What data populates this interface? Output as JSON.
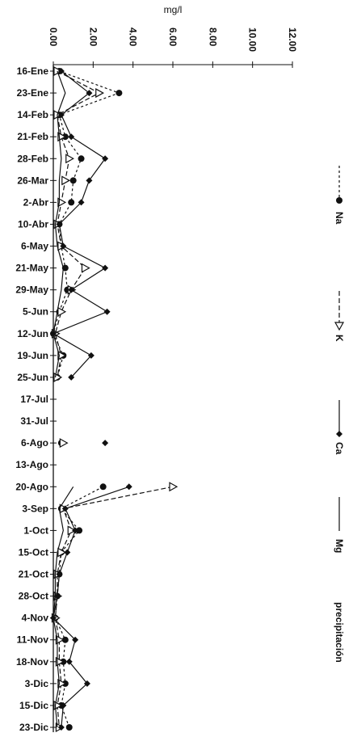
{
  "chart_data": {
    "type": "line",
    "orientation": "rotated-vertical",
    "xlabel": "mg/l",
    "xlim": [
      0,
      12
    ],
    "ticks": [
      "0.00",
      "2.00",
      "4.00",
      "6.00",
      "8.00",
      "10.00",
      "12.00"
    ],
    "categories": [
      "16-Ene",
      "23-Ene",
      "14-Feb",
      "21-Feb",
      "28-Feb",
      "26-Mar",
      "2-Abr",
      "10-Abr",
      "6-May",
      "21-May",
      "29-May",
      "5-Jun",
      "12-Jun",
      "19-Jun",
      "25-Jun",
      "17-Jul",
      "31-Jul",
      "6-Ago",
      "13-Ago",
      "20-Ago",
      "3-Sep",
      "1-Oct",
      "15-Oct",
      "21-Oct",
      "28-Oct",
      "4-Nov",
      "11-Nov",
      "18-Nov",
      "3-Dic",
      "15-Dic",
      "23-Dic"
    ],
    "series": [
      {
        "name": "Na",
        "color": "#111111",
        "marker": "circle",
        "dash": "3,3",
        "values": [
          0.3,
          3.3,
          0.3,
          0.6,
          1.4,
          1.0,
          0.9,
          0.3,
          0.4,
          0.6,
          0.7,
          0.3,
          0.0,
          0.5,
          0.2,
          null,
          null,
          0.4,
          null,
          2.5,
          0.4,
          1.3,
          0.4,
          0.3,
          0.2,
          0.1,
          0.6,
          0.5,
          0.6,
          0.4,
          0.8
        ]
      },
      {
        "name": "K",
        "color": "#111111",
        "marker": "triangle",
        "dash": "6,3",
        "values": [
          0.2,
          2.3,
          0.2,
          0.4,
          0.8,
          0.6,
          0.4,
          0.2,
          0.4,
          1.6,
          0.9,
          0.4,
          0.1,
          0.4,
          0.2,
          null,
          null,
          0.5,
          null,
          6.0,
          0.5,
          0.9,
          0.4,
          0.2,
          0.2,
          0.1,
          0.3,
          0.3,
          0.4,
          0.2,
          0.3
        ]
      },
      {
        "name": "Ca",
        "color": "#111111",
        "marker": "diamond",
        "dash": "",
        "values": [
          0.4,
          1.8,
          0.4,
          0.9,
          2.6,
          1.8,
          1.4,
          0.3,
          0.5,
          2.6,
          0.9,
          2.7,
          0.0,
          1.9,
          0.9,
          null,
          null,
          2.6,
          null,
          3.8,
          0.6,
          1.1,
          0.7,
          0.3,
          0.2,
          0.0,
          1.1,
          0.8,
          1.7,
          0.5,
          0.4
        ]
      },
      {
        "name": "Mg",
        "color": "#111111",
        "marker": "none",
        "dash": "",
        "values": [
          0.2,
          0.6,
          0.2,
          0.3,
          0.4,
          0.3,
          0.3,
          0.1,
          0.2,
          0.5,
          0.4,
          0.2,
          0.0,
          0.3,
          0.1,
          null,
          null,
          0.2,
          null,
          1.0,
          0.3,
          0.5,
          0.2,
          0.1,
          0.1,
          0.0,
          0.2,
          0.2,
          0.3,
          0.1,
          0.2
        ]
      }
    ],
    "legend": {
      "position": "right",
      "entries": [
        "Na",
        "K",
        "Ca",
        "Mg",
        "precipitación"
      ]
    }
  }
}
